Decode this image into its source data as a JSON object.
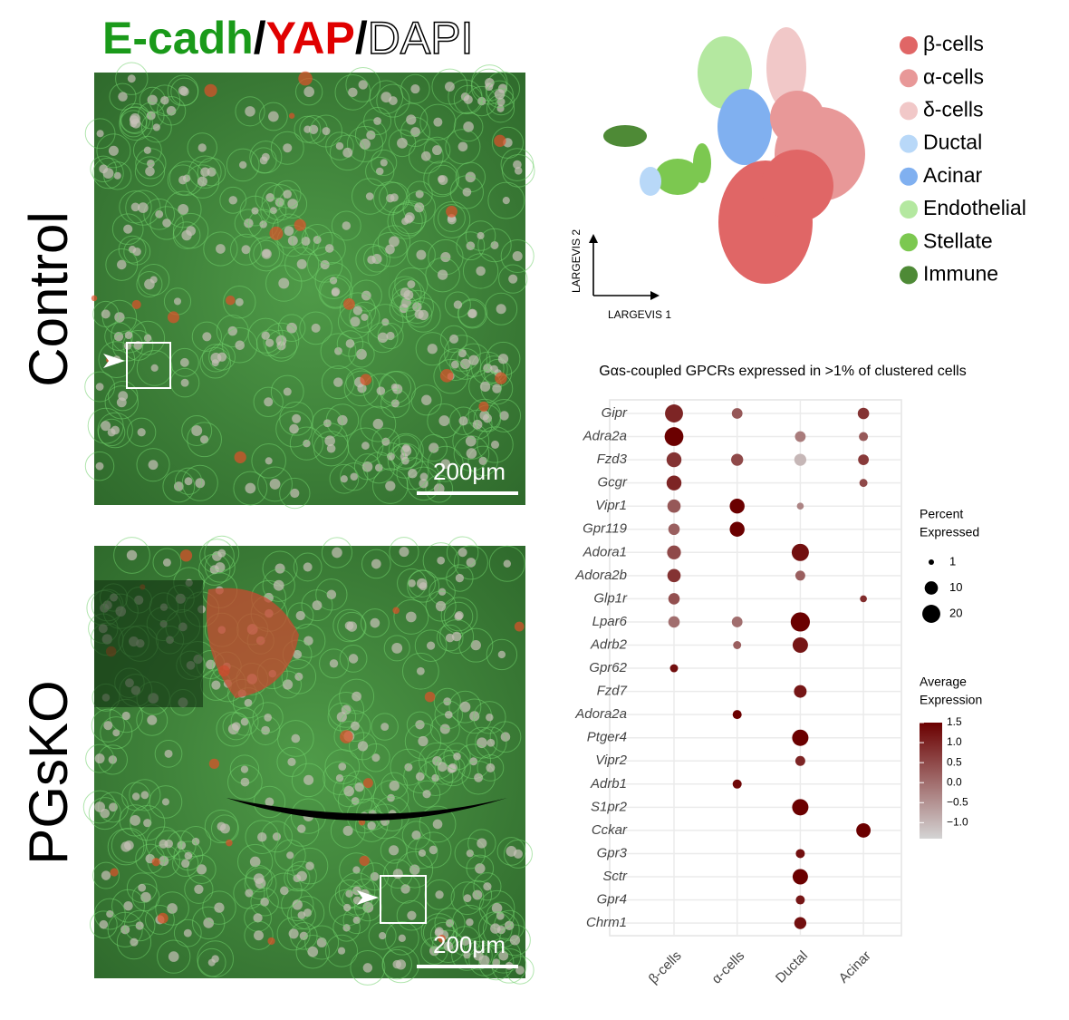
{
  "figure": {
    "title_parts": [
      "E-cadh",
      "/",
      "YAP",
      "/",
      "DAPI"
    ],
    "panels": [
      {
        "label": "Control",
        "scale_bar": "200μm"
      },
      {
        "label": "PGsKO",
        "scale_bar": "200μm"
      }
    ]
  },
  "embedding": {
    "x_label": "LARGEVIS 1",
    "y_label": "LARGEVIS 2",
    "clusters": [
      {
        "name": "β-cells",
        "color": "#e06666"
      },
      {
        "name": "α-cells",
        "color": "#e89898"
      },
      {
        "name": "δ-cells",
        "color": "#f1c8c8"
      },
      {
        "name": "Ductal",
        "color": "#b8d8f8"
      },
      {
        "name": "Acinar",
        "color": "#80b0f0"
      },
      {
        "name": "Endothelial",
        "color": "#b4e8a0"
      },
      {
        "name": "Stellate",
        "color": "#7cc850"
      },
      {
        "name": "Immune",
        "color": "#4e8a36"
      }
    ]
  },
  "chart_data": {
    "type": "dotplot",
    "title": "Gαs-coupled GPCRs expressed in >1% of clustered cells",
    "genes": [
      "Gipr",
      "Adra2a",
      "Fzd3",
      "Gcgr",
      "Vipr1",
      "Gpr119",
      "Adora1",
      "Adora2b",
      "Glp1r",
      "Lpar6",
      "Adrb2",
      "Gpr62",
      "Fzd7",
      "Adora2a",
      "Ptger4",
      "Vipr2",
      "Adrb1",
      "S1pr2",
      "Cckar",
      "Gpr3",
      "Sctr",
      "Gpr4",
      "Chrm1"
    ],
    "series": [
      {
        "name": "β-cells",
        "pct": [
          20,
          22,
          13,
          13,
          10,
          7,
          11,
          10,
          7,
          7,
          null,
          3,
          null,
          null,
          null,
          null,
          null,
          null,
          null,
          null,
          null,
          null,
          null
        ],
        "avg": [
          1.0,
          1.5,
          0.8,
          1.0,
          0.3,
          0.2,
          0.5,
          0.8,
          0.4,
          0.0,
          null,
          1.3,
          null,
          null,
          null,
          null,
          null,
          null,
          null,
          null,
          null,
          null,
          null
        ]
      },
      {
        "name": "α-cells",
        "pct": [
          6,
          null,
          8,
          null,
          13,
          13,
          null,
          null,
          null,
          6,
          3,
          null,
          null,
          4,
          null,
          null,
          4,
          null,
          null,
          null,
          null,
          null,
          null
        ],
        "avg": [
          0.3,
          null,
          0.5,
          null,
          1.5,
          1.5,
          null,
          null,
          null,
          0.0,
          0.2,
          null,
          null,
          1.5,
          null,
          null,
          1.4,
          null,
          null,
          null,
          null,
          null,
          null
        ]
      },
      {
        "name": "Ductal",
        "pct": [
          null,
          6,
          8,
          null,
          2,
          null,
          18,
          5,
          null,
          23,
          14,
          null,
          9,
          null,
          16,
          5,
          null,
          16,
          null,
          4,
          14,
          4,
          8
        ],
        "avg": [
          null,
          -0.2,
          -1.0,
          null,
          -0.3,
          null,
          1.3,
          0.2,
          null,
          1.5,
          1.2,
          null,
          1.2,
          null,
          1.5,
          1.0,
          null,
          1.5,
          null,
          1.3,
          1.5,
          1.2,
          1.3
        ]
      },
      {
        "name": "Acinar",
        "pct": [
          7,
          4,
          6,
          3,
          null,
          null,
          null,
          null,
          2,
          null,
          null,
          null,
          null,
          null,
          null,
          null,
          null,
          null,
          12,
          null,
          null,
          null,
          null
        ],
        "avg": [
          0.8,
          0.3,
          0.7,
          0.5,
          null,
          null,
          null,
          null,
          0.9,
          null,
          null,
          null,
          null,
          null,
          null,
          null,
          null,
          null,
          1.5,
          null,
          null,
          null,
          null
        ]
      }
    ],
    "size_legend": {
      "title": [
        "Percent",
        "Expressed"
      ],
      "values": [
        1,
        10,
        20
      ]
    },
    "color_legend": {
      "title": [
        "Average",
        "Expression"
      ],
      "lim": [
        -1.4,
        1.5
      ],
      "colors": [
        "#d4d4d4",
        "#6b0000"
      ],
      "ticks": [
        1.5,
        {
          "value": 1,
          "label": "1.0"
        },
        0.5,
        {
          "value": 0,
          "label": "0.0"
        },
        {
          "value": -0.5,
          "label": "−0.5"
        },
        {
          "value": -1,
          "label": "−1.0"
        }
      ]
    },
    "grid": true
  }
}
